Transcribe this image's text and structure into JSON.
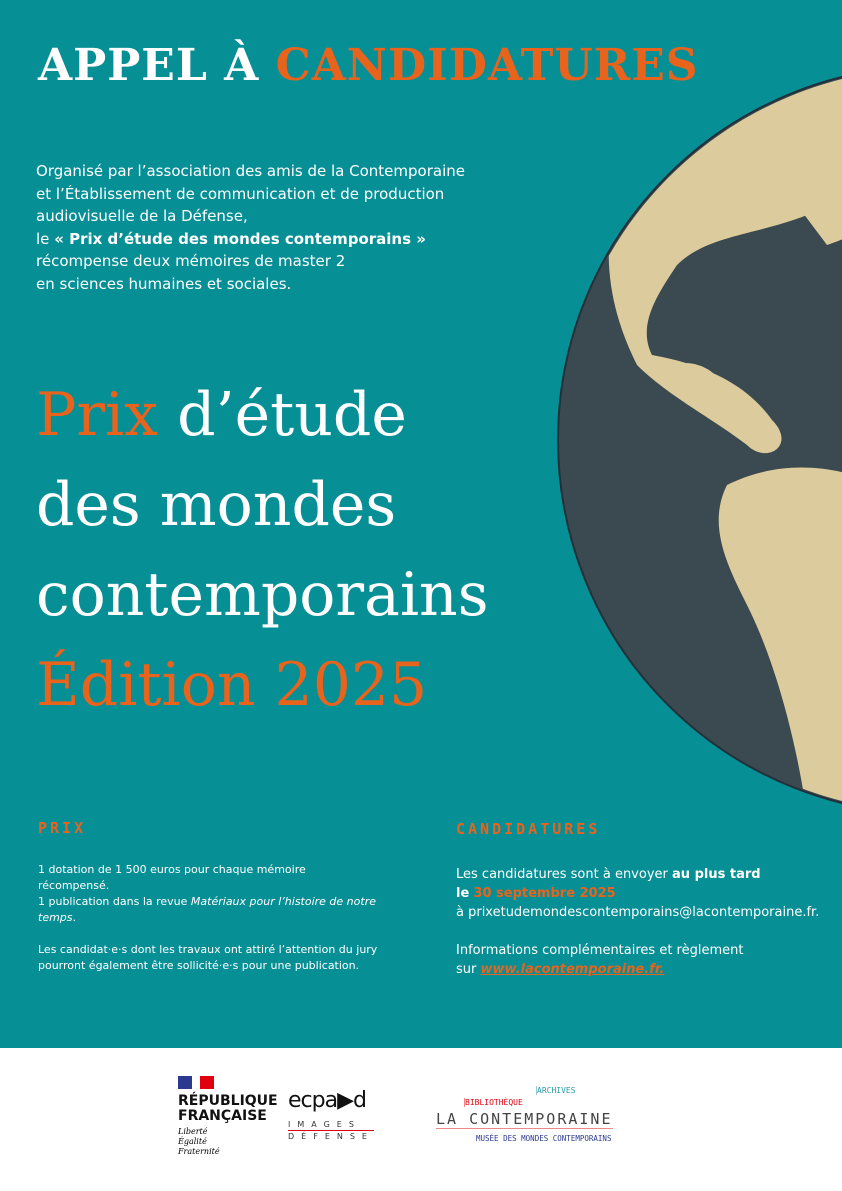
{
  "header": {
    "title_white": "APPEL À",
    "title_orange": "CANDIDATURES"
  },
  "intro": {
    "line1": "Organisé par l’association des amis de la Contemporaine",
    "line2": "et l’Établissement de communication et de production",
    "line3": "audiovisuelle de la Défense,",
    "line4_pre": "le",
    "line4_bold": "« Prix d’étude des mondes contemporains »",
    "line5": "récompense deux mémoires de master 2",
    "line6": "en sciences humaines et sociales."
  },
  "headline": {
    "prix": "Prix",
    "rest1": "d’étude",
    "line2": "des mondes",
    "line3": "contemporains",
    "line4": "Édition 2025"
  },
  "prix_section": {
    "heading": "PRIX",
    "line1": "1 dotation de 1 500 euros pour chaque mémoire récompensé.",
    "line2_pre": "1 publication dans la revue",
    "line2_italic": "Matériaux pour l’histoire de notre temps",
    "line2_post": ".",
    "para2": "Les candidat·e·s dont les travaux ont attiré l’attention du jury pourront également être sollicité·e·s pour une publication."
  },
  "candidatures_section": {
    "heading": "CANDIDATURES",
    "l1_pre": "Les candidatures sont à envoyer",
    "l1_bold": "au plus tard",
    "l2_bold": "le",
    "l2_date": "30 septembre 2025",
    "l3": "à prixetudemondescontemporains@lacontemporaine.fr.",
    "info1": "Informations complémentaires et règlement",
    "info2_pre": "sur",
    "info_link": "www.lacontemporaine.fr."
  },
  "footer": {
    "rf_name": "RÉPUBLIQUE FRANÇAISE",
    "rf_motto": [
      "Liberté",
      "Égalité",
      "Fraternité"
    ],
    "ecpad": "ecpa▶d",
    "ecpad_sub1": "IMAGES",
    "ecpad_sub2": "DÉFENSE",
    "lac_bib": "BIBLIOTHÈQUE",
    "lac_archives": "ARCHIVES",
    "lac_name": "LA CONTEMPORAINE",
    "lac_musee": "MUSÉE DES MONDES CONTEMPORAINS"
  },
  "colors": {
    "background": "#078f96",
    "accent": "#e8631c",
    "globe_ocean": "#3a4a50",
    "globe_land": "#dccb9c"
  }
}
